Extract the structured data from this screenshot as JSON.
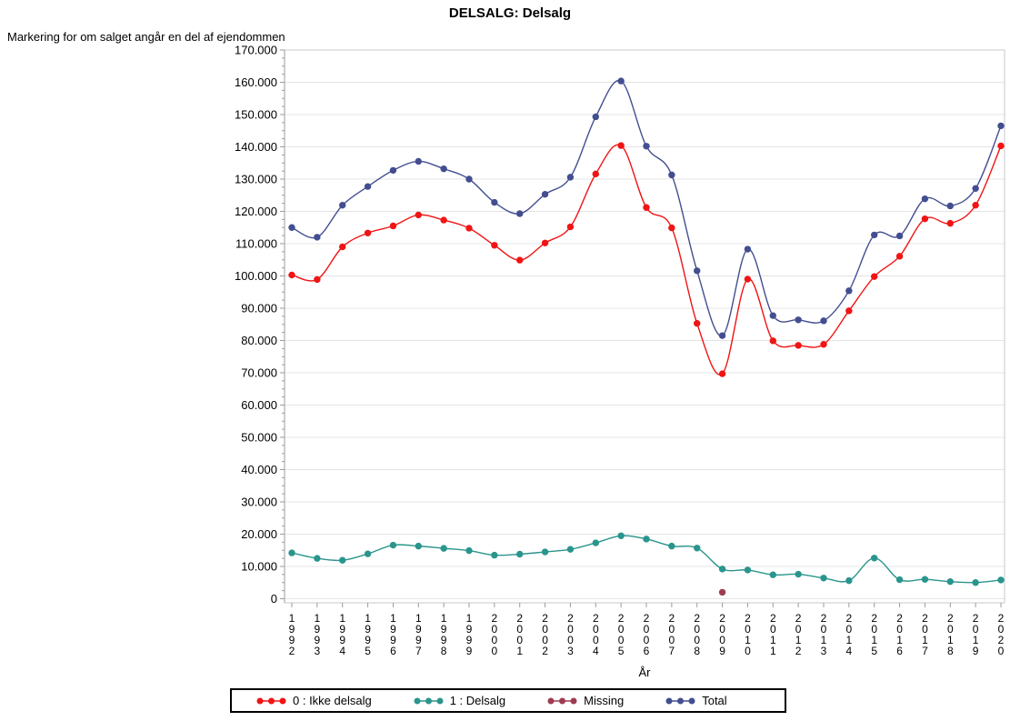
{
  "page": {
    "title": "DELSALG: Delsalg"
  },
  "chart_data": {
    "type": "line",
    "title": "DELSALG: Delsalg",
    "ylabel": "Markering for om salget angår en del af ejendommen",
    "xlabel": "År",
    "categories": [
      "1992",
      "1993",
      "1994",
      "1995",
      "1996",
      "1997",
      "1998",
      "1999",
      "2000",
      "2001",
      "2002",
      "2003",
      "2004",
      "2005",
      "2006",
      "2007",
      "2008",
      "2009",
      "2010",
      "2011",
      "2012",
      "2013",
      "2014",
      "2015",
      "2016",
      "2017",
      "2018",
      "2019",
      "2020"
    ],
    "ylim": [
      0,
      170000
    ],
    "ytick_step": 10000,
    "y_minor_step": 2500,
    "y_tick_format": "thousands-dot-separator",
    "grid": "horizontal-major-only",
    "line_interpolation": "smooth-spline",
    "legend_position": "bottom-center",
    "frame_color": "#c9c9c9",
    "grid_color": "#e4e4e4",
    "axis_color": "#9b9b9b",
    "text_color": "#000000",
    "series": [
      {
        "name": "0 : Ikke delsalg",
        "color": "#f01414",
        "values": [
          100300,
          98900,
          109000,
          113300,
          115500,
          118900,
          117300,
          114800,
          109500,
          104900,
          110200,
          115200,
          131600,
          140400,
          121200,
          114900,
          85300,
          69700,
          99000,
          79900,
          78500,
          78800,
          89200,
          99800,
          106100,
          117700,
          116300,
          121900,
          140300
        ]
      },
      {
        "name": "1 : Delsalg",
        "color": "#2a958c",
        "values": [
          14200,
          12500,
          11900,
          13900,
          16600,
          16300,
          15600,
          14900,
          13500,
          13800,
          14500,
          15300,
          17300,
          19500,
          18500,
          16300,
          15700,
          9200,
          8900,
          7400,
          7600,
          6400,
          5600,
          12600,
          5900,
          6000,
          5300,
          5000,
          5800
        ]
      },
      {
        "name": "Missing",
        "color": "#9e3b53",
        "values": [
          null,
          null,
          null,
          null,
          null,
          null,
          null,
          null,
          null,
          null,
          null,
          null,
          null,
          null,
          null,
          null,
          null,
          2000,
          null,
          null,
          null,
          null,
          null,
          null,
          null,
          null,
          null,
          null,
          null
        ]
      },
      {
        "name": "Total",
        "color": "#434e90",
        "values": [
          115000,
          112000,
          121900,
          127700,
          132700,
          135500,
          133200,
          130000,
          122800,
          119300,
          125300,
          130600,
          149300,
          160400,
          140200,
          131300,
          101600,
          81500,
          108300,
          87700,
          86400,
          86100,
          95400,
          112700,
          112400,
          123900,
          121700,
          127100,
          146500
        ]
      }
    ]
  }
}
